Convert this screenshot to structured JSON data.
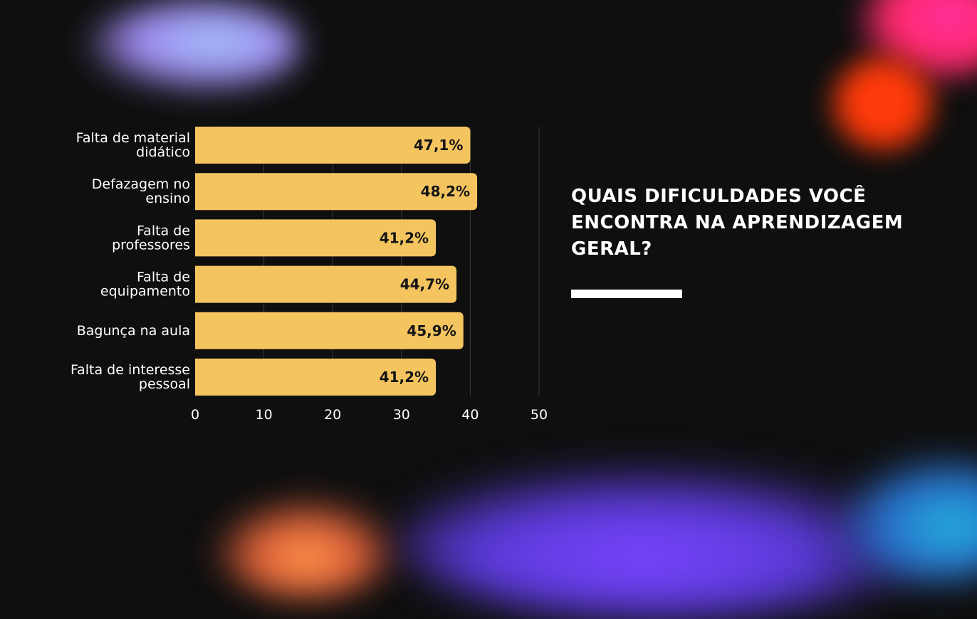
{
  "question": {
    "title": "QUAIS DIFICULDADES VOCÊ ENCONTRA NA APRENDIZAGEM GERAL?"
  },
  "colors": {
    "background": "#0f0f0f",
    "bar": "#f4c45f",
    "text": "#ffffff",
    "value_text": "#141414",
    "grid": "#3a3a3a"
  },
  "chart_data": {
    "type": "bar",
    "orientation": "horizontal",
    "categories": [
      [
        "Falta de material",
        "didático"
      ],
      [
        "Defazagem no",
        "ensino"
      ],
      [
        "Falta de",
        "professores"
      ],
      [
        "Falta de",
        "equipamento"
      ],
      [
        "Bagunça na aula"
      ],
      [
        "Falta de interesse",
        "pessoal"
      ]
    ],
    "values": [
      40,
      41,
      35,
      38,
      39,
      35
    ],
    "data_labels": [
      "47,1%",
      "48,2%",
      "41,2%",
      "44,7%",
      "45,9%",
      "41,2%"
    ],
    "xlim": [
      0,
      50
    ],
    "xticks": [
      0,
      10,
      20,
      30,
      40,
      50
    ],
    "xtick_labels": [
      "0",
      "10",
      "20",
      "30",
      "40",
      "50"
    ],
    "grid": true
  }
}
